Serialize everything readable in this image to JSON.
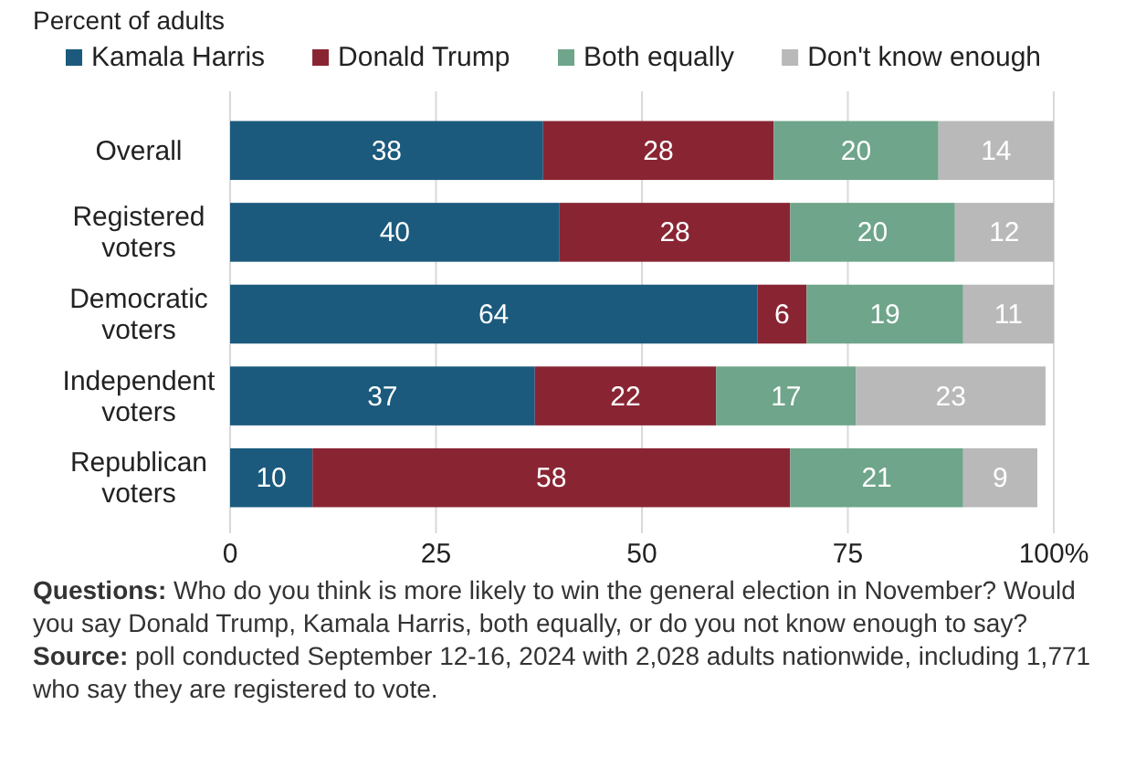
{
  "chart_data": {
    "type": "bar",
    "orientation": "horizontal",
    "stacked": true,
    "subtitle": "Percent of adults",
    "categories": [
      "Overall",
      "Registered voters",
      "Democratic voters",
      "Independent voters",
      "Republican voters"
    ],
    "series": [
      {
        "name": "Kamala Harris",
        "color": "#1b5a7d",
        "values": [
          38,
          40,
          64,
          37,
          10
        ]
      },
      {
        "name": "Donald Trump",
        "color": "#892533",
        "values": [
          28,
          28,
          6,
          22,
          58
        ]
      },
      {
        "name": "Both equally",
        "color": "#6fa58a",
        "values": [
          20,
          20,
          19,
          17,
          21
        ]
      },
      {
        "name": "Don't know enough",
        "color": "#b9b9b9",
        "values": [
          14,
          12,
          11,
          23,
          9
        ]
      }
    ],
    "xlim": [
      0,
      100
    ],
    "xticks": [
      0,
      25,
      50,
      75,
      {
        "value": 100,
        "label": "100%"
      }
    ],
    "grid": "x",
    "legend": "top",
    "data_labels": true,
    "annotations": [
      "Questions: Who do you think is more likely to win the general election in November? Would you say Donald Trump, Kamala Harris, both equally, or do you not know enough to say?",
      "Source: poll conducted September 12-16, 2024 with 2,028 adults nationwide, including 1,771 who say they are registered to vote."
    ]
  }
}
